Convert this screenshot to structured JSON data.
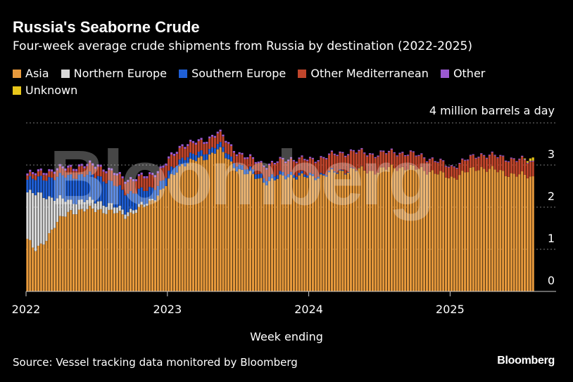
{
  "header": {
    "title": "Russia's Seaborne Crude",
    "subtitle": "Four-week average crude shipments from Russia by destination (2022-2025)"
  },
  "legend": [
    {
      "label": "Asia",
      "color": "#e89a3c"
    },
    {
      "label": "Northern Europe",
      "color": "#d9d9d9"
    },
    {
      "label": "Southern Europe",
      "color": "#1f5fd6"
    },
    {
      "label": "Other Mediterranean",
      "color": "#c0452b"
    },
    {
      "label": "Other",
      "color": "#9b59d0"
    },
    {
      "label": "Unknown",
      "color": "#e8c61a"
    }
  ],
  "footer": {
    "source": "Source: Vessel tracking data monitored by Bloomberg",
    "brand": "Bloomberg"
  },
  "watermark": "Bloomberg",
  "chart_data": {
    "type": "bar",
    "stacked": true,
    "unit_label": "4 million barrels a day",
    "xlabel": "Week ending",
    "ylim": [
      0,
      4
    ],
    "y_ticks": [
      0,
      1,
      2,
      3
    ],
    "x_ticks": [
      "2022",
      "2023",
      "2024",
      "2025"
    ],
    "x_start": 2022.0,
    "x_end": 2025.6,
    "weeks_per_year": 52,
    "grid": "horizontal dotted",
    "legend_position": "top",
    "series": [
      {
        "name": "Asia",
        "color": "#e89a3c",
        "keyframes": [
          [
            2022.0,
            1.25
          ],
          [
            2022.05,
            0.95
          ],
          [
            2022.1,
            1.1
          ],
          [
            2022.2,
            1.6
          ],
          [
            2022.3,
            1.9
          ],
          [
            2022.5,
            1.95
          ],
          [
            2022.7,
            1.8
          ],
          [
            2022.85,
            2.05
          ],
          [
            2022.95,
            2.4
          ],
          [
            2023.1,
            3.05
          ],
          [
            2023.25,
            3.15
          ],
          [
            2023.35,
            3.4
          ],
          [
            2023.45,
            3.0
          ],
          [
            2023.55,
            2.8
          ],
          [
            2023.7,
            2.6
          ],
          [
            2023.85,
            2.75
          ],
          [
            2024.0,
            2.7
          ],
          [
            2024.15,
            2.8
          ],
          [
            2024.3,
            2.9
          ],
          [
            2024.45,
            2.85
          ],
          [
            2024.6,
            2.95
          ],
          [
            2024.8,
            2.9
          ],
          [
            2025.0,
            2.7
          ],
          [
            2025.2,
            2.95
          ],
          [
            2025.4,
            2.8
          ],
          [
            2025.6,
            2.7
          ]
        ]
      },
      {
        "name": "Northern Europe",
        "color": "#d9d9d9",
        "keyframes": [
          [
            2022.0,
            1.1
          ],
          [
            2022.05,
            1.35
          ],
          [
            2022.1,
            1.2
          ],
          [
            2022.2,
            0.6
          ],
          [
            2022.3,
            0.25
          ],
          [
            2022.5,
            0.2
          ],
          [
            2022.7,
            0.1
          ],
          [
            2022.85,
            0.05
          ],
          [
            2022.95,
            0.0
          ],
          [
            2025.6,
            0.0
          ]
        ]
      },
      {
        "name": "Southern Europe",
        "color": "#1f5fd6",
        "keyframes": [
          [
            2022.0,
            0.3
          ],
          [
            2022.15,
            0.45
          ],
          [
            2022.3,
            0.6
          ],
          [
            2022.5,
            0.6
          ],
          [
            2022.7,
            0.45
          ],
          [
            2022.85,
            0.3
          ],
          [
            2022.95,
            0.2
          ],
          [
            2023.1,
            0.15
          ],
          [
            2023.4,
            0.12
          ],
          [
            2023.7,
            0.1
          ],
          [
            2024.0,
            0.05
          ],
          [
            2024.2,
            0.02
          ],
          [
            2024.4,
            0.0
          ],
          [
            2025.6,
            0.0
          ]
        ]
      },
      {
        "name": "Other Mediterranean",
        "color": "#c0452b",
        "keyframes": [
          [
            2022.0,
            0.1
          ],
          [
            2022.2,
            0.15
          ],
          [
            2022.4,
            0.2
          ],
          [
            2022.6,
            0.25
          ],
          [
            2022.8,
            0.3
          ],
          [
            2022.95,
            0.3
          ],
          [
            2023.2,
            0.25
          ],
          [
            2023.4,
            0.25
          ],
          [
            2023.6,
            0.25
          ],
          [
            2023.8,
            0.3
          ],
          [
            2024.0,
            0.35
          ],
          [
            2024.2,
            0.4
          ],
          [
            2024.4,
            0.4
          ],
          [
            2024.6,
            0.35
          ],
          [
            2024.8,
            0.3
          ],
          [
            2025.0,
            0.25
          ],
          [
            2025.2,
            0.3
          ],
          [
            2025.4,
            0.35
          ],
          [
            2025.6,
            0.35
          ]
        ]
      },
      {
        "name": "Other",
        "color": "#9b59d0",
        "keyframes": [
          [
            2022.0,
            0.05
          ],
          [
            2022.5,
            0.05
          ],
          [
            2023.0,
            0.05
          ],
          [
            2023.5,
            0.04
          ],
          [
            2024.0,
            0.03
          ],
          [
            2025.0,
            0.02
          ],
          [
            2025.6,
            0.02
          ]
        ]
      },
      {
        "name": "Unknown",
        "color": "#e8c61a",
        "keyframes": [
          [
            2022.0,
            0.0
          ],
          [
            2025.5,
            0.0
          ],
          [
            2025.55,
            0.05
          ],
          [
            2025.6,
            0.1
          ]
        ]
      }
    ]
  }
}
